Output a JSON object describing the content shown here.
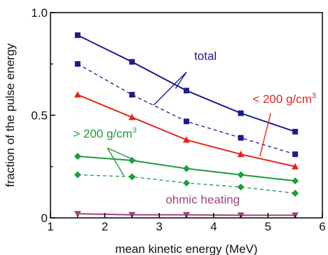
{
  "chart_data": {
    "type": "line",
    "xlabel": "mean kinetic energy (MeV)",
    "ylabel": "fraction of the pulse energy",
    "xlim": [
      1,
      6
    ],
    "ylim": [
      0,
      1.0
    ],
    "xticks": [
      1,
      2,
      3,
      4,
      5,
      6
    ],
    "yticks": [
      {
        "value": 0,
        "label": "0"
      },
      {
        "value": 0.5,
        "label": "0.5"
      },
      {
        "value": 1.0,
        "label": "1.0"
      }
    ],
    "grid": false,
    "legend": "none",
    "series": [
      {
        "color": "#1c1c8c",
        "marker": "square",
        "dashed": false,
        "x": [
          1.5,
          2.5,
          3.5,
          4.5,
          5.5
        ],
        "y": [
          0.89,
          0.76,
          0.62,
          0.51,
          0.42
        ]
      },
      {
        "color": "#1c1c8c",
        "marker": "square",
        "dashed": true,
        "x": [
          1.5,
          2.5,
          3.5,
          4.5,
          5.5
        ],
        "y": [
          0.75,
          0.6,
          0.47,
          0.39,
          0.31
        ]
      },
      {
        "color": "#e0261c",
        "marker": "triangle-up",
        "dashed": false,
        "x": [
          1.5,
          2.5,
          3.5,
          4.5,
          5.5
        ],
        "y": [
          0.6,
          0.49,
          0.38,
          0.31,
          0.25
        ]
      },
      {
        "color": "#1c9c3c",
        "marker": "diamond",
        "dashed": false,
        "x": [
          1.5,
          2.5,
          3.5,
          4.5,
          5.5
        ],
        "y": [
          0.3,
          0.28,
          0.24,
          0.21,
          0.18
        ]
      },
      {
        "color": "#1c9c3c",
        "marker": "diamond",
        "dashed": true,
        "x": [
          1.5,
          2.5,
          3.5,
          4.5,
          5.5
        ],
        "y": [
          0.21,
          0.2,
          0.17,
          0.15,
          0.12
        ]
      },
      {
        "color": "#a0447c",
        "marker": "triangle-down",
        "dashed": false,
        "x": [
          1.5,
          2.5,
          3.5,
          4.5,
          5.5
        ],
        "y": [
          0.02,
          0.015,
          0.015,
          0.013,
          0.013
        ]
      }
    ],
    "annotations": [
      {
        "text": "total",
        "color": "#1c1c8c",
        "x": 3.85,
        "y": 0.77
      },
      {
        "text": "< 200 g/cm",
        "sup": "3",
        "color": "#e0261c",
        "x": 5.3,
        "y": 0.56
      },
      {
        "text": "> 200 g/cm",
        "sup": "3",
        "color": "#1c9c3c",
        "x": 2.0,
        "y": 0.39
      },
      {
        "text": "ohmic heating",
        "color": "#a0447c",
        "x": 3.8,
        "y": 0.07
      }
    ],
    "pointers": [
      {
        "color": "#1c1c8c",
        "from": [
          3.5,
          0.71
        ],
        "to": [
          3.3,
          0.63
        ]
      },
      {
        "color": "#1c1c8c",
        "from": [
          3.5,
          0.71
        ],
        "to": [
          2.9,
          0.55
        ]
      },
      {
        "color": "#e0261c",
        "from": [
          5.05,
          0.51
        ],
        "to": [
          4.85,
          0.3
        ]
      },
      {
        "color": "#1c9c3c",
        "from": [
          2.05,
          0.34
        ],
        "to": [
          2.6,
          0.275
        ]
      },
      {
        "color": "#1c9c3c",
        "from": [
          2.05,
          0.34
        ],
        "to": [
          2.35,
          0.205
        ]
      }
    ]
  }
}
